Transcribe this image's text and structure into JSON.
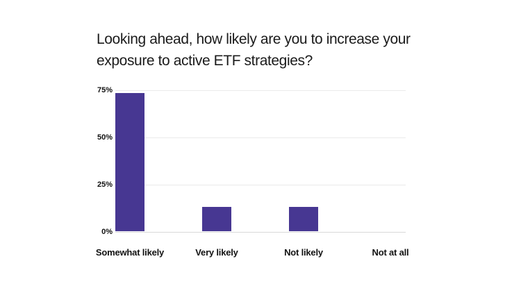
{
  "title_lines": [
    "Looking ahead, how likely are you to increase your",
    "exposure to active ETF strategies?"
  ],
  "colors": {
    "bar": "#473792",
    "gridline": "#eaeaea",
    "baseline": "#d8d8d8",
    "title_text": "#1b1b1b",
    "tick_text": "#121212",
    "background": "#ffffff"
  },
  "chart_data": {
    "type": "bar",
    "title": "Looking ahead, how likely are you to increase your exposure to active ETF strategies?",
    "categories": [
      "Somewhat likely",
      "Very likely",
      "Not likely",
      "Not at all"
    ],
    "values": [
      73,
      13,
      13,
      0
    ],
    "xlabel": "",
    "ylabel": "",
    "ylim": [
      0,
      75
    ],
    "yticks": [
      75,
      50,
      25,
      0
    ],
    "ytick_labels": [
      "75%",
      "50%",
      "25%",
      "0%"
    ],
    "grid": true,
    "legend": false,
    "bar_color": "#473792"
  }
}
